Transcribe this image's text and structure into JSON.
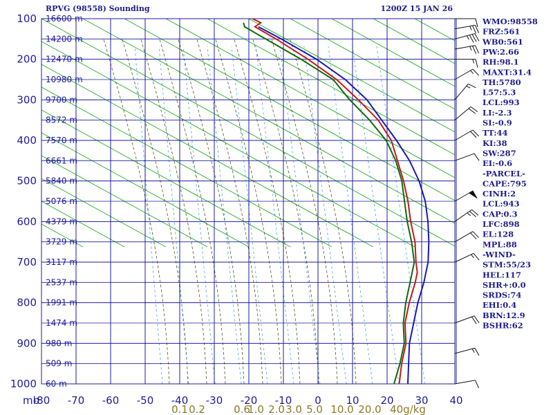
{
  "station_title": "RPVG (98558) Sounding",
  "time_title": "1200Z 15 JAN 26",
  "chart_data": {
    "type": "line",
    "diagram": "skew-t",
    "y_pressure_levels": [
      100,
      200,
      300,
      400,
      500,
      600,
      700,
      800,
      900,
      1000
    ],
    "y_tick_labels": [
      "100",
      "200",
      "300",
      "400",
      "500",
      "600",
      "700",
      "800",
      "900",
      "1000"
    ],
    "y_unit_label": "mb",
    "x_temperature_ticks": [
      -80,
      -70,
      -60,
      -50,
      -40,
      -30,
      -20,
      -10,
      0,
      10,
      20,
      30,
      40
    ],
    "x_tick_labels": [
      "-80",
      "-70",
      "-60",
      "-50",
      "-40",
      "-30",
      "-20",
      "-10",
      "0",
      "10",
      "20",
      "30",
      "40"
    ],
    "height_labels": [
      {
        "p": 100,
        "text": "16600 m"
      },
      {
        "p": 150,
        "text": "14200 m"
      },
      {
        "p": 200,
        "text": "12470 m"
      },
      {
        "p": 250,
        "text": "10980 m"
      },
      {
        "p": 300,
        "text": "9700 m"
      },
      {
        "p": 350,
        "text": "8572 m"
      },
      {
        "p": 400,
        "text": "7570 m"
      },
      {
        "p": 450,
        "text": "6661 m"
      },
      {
        "p": 500,
        "text": "5840 m"
      },
      {
        "p": 550,
        "text": "5076 m"
      },
      {
        "p": 600,
        "text": "4379 m"
      },
      {
        "p": 650,
        "text": "3729 m"
      },
      {
        "p": 700,
        "text": "3117 m"
      },
      {
        "p": 750,
        "text": "2537 m"
      },
      {
        "p": 800,
        "text": "1991 m"
      },
      {
        "p": 850,
        "text": "1474 m"
      },
      {
        "p": 900,
        "text": "980 m"
      },
      {
        "p": 950,
        "text": "509 m"
      },
      {
        "p": 1000,
        "text": "60 m"
      }
    ],
    "mixing_ratio_labels": [
      {
        "t": -40,
        "text": "0.1"
      },
      {
        "t": -35,
        "text": "0.2"
      },
      {
        "t": -22,
        "text": "0.6"
      },
      {
        "t": -18,
        "text": "1.0"
      },
      {
        "t": -12,
        "text": "2.0"
      },
      {
        "t": -7,
        "text": "3.0"
      },
      {
        "t": -1,
        "text": "5.0"
      },
      {
        "t": 7,
        "text": "10.0"
      },
      {
        "t": 15,
        "text": "20.0"
      },
      {
        "t": 26,
        "text": "40g/kg"
      }
    ],
    "series": [
      {
        "key": "temperature",
        "color": "#c01818",
        "points": [
          [
            1000,
            23.5
          ],
          [
            950,
            21
          ],
          [
            900,
            19
          ],
          [
            850,
            15.5
          ],
          [
            800,
            13.5
          ],
          [
            750,
            12
          ],
          [
            725,
            11
          ],
          [
            700,
            9
          ],
          [
            650,
            5.5
          ],
          [
            600,
            1
          ],
          [
            550,
            -3
          ],
          [
            500,
            -7.5
          ],
          [
            450,
            -12.5
          ],
          [
            400,
            -17.5
          ],
          [
            350,
            -24.5
          ],
          [
            300,
            -33.5
          ],
          [
            250,
            -43
          ],
          [
            200,
            -54.5
          ],
          [
            150,
            -67
          ],
          [
            120,
            -75
          ],
          [
            110,
            -74
          ],
          [
            100,
            -77
          ]
        ]
      },
      {
        "key": "dewpoint",
        "color": "#0c6a0c",
        "points": [
          [
            1000,
            22
          ],
          [
            950,
            20.5
          ],
          [
            900,
            18.5
          ],
          [
            850,
            15
          ],
          [
            800,
            12.5
          ],
          [
            750,
            10.5
          ],
          [
            700,
            8.5
          ],
          [
            650,
            4.5
          ],
          [
            600,
            0
          ],
          [
            550,
            -4
          ],
          [
            500,
            -8
          ],
          [
            450,
            -13
          ],
          [
            400,
            -19
          ],
          [
            350,
            -27
          ],
          [
            300,
            -36
          ],
          [
            250,
            -44
          ],
          [
            200,
            -56.5
          ],
          [
            150,
            -70
          ],
          [
            120,
            -78
          ],
          [
            110,
            -79
          ]
        ]
      },
      {
        "key": "parcel",
        "color": "#1818b4",
        "points": [
          [
            1000,
            26
          ],
          [
            950,
            23
          ],
          [
            900,
            20
          ],
          [
            850,
            18
          ],
          [
            800,
            16
          ],
          [
            750,
            14.5
          ],
          [
            700,
            12.5
          ],
          [
            650,
            9.5
          ],
          [
            600,
            6
          ],
          [
            550,
            2
          ],
          [
            500,
            -3
          ],
          [
            450,
            -9
          ],
          [
            400,
            -16
          ],
          [
            350,
            -23.5
          ],
          [
            300,
            -31
          ],
          [
            250,
            -40.5
          ],
          [
            200,
            -52
          ],
          [
            150,
            -65.5
          ],
          [
            120,
            -74
          ]
        ]
      }
    ],
    "wind_barbs": [
      {
        "p": 100,
        "dir": 90,
        "kt": 10
      },
      {
        "p": 125,
        "dir": 80,
        "kt": 25
      },
      {
        "p": 150,
        "dir": 75,
        "kt": 35
      },
      {
        "p": 175,
        "dir": 80,
        "kt": 25
      },
      {
        "p": 200,
        "dir": 90,
        "kt": 15
      },
      {
        "p": 250,
        "dir": 60,
        "kt": 15
      },
      {
        "p": 300,
        "dir": 40,
        "kt": 15
      },
      {
        "p": 350,
        "dir": 50,
        "kt": 20
      },
      {
        "p": 400,
        "dir": 60,
        "kt": 20
      },
      {
        "p": 450,
        "dir": 70,
        "kt": 10
      },
      {
        "p": 550,
        "dir": 60,
        "kt": 50
      },
      {
        "p": 600,
        "dir": 55,
        "kt": 25
      },
      {
        "p": 650,
        "dir": 60,
        "kt": 20
      },
      {
        "p": 700,
        "dir": 65,
        "kt": 15
      },
      {
        "p": 850,
        "dir": 70,
        "kt": 20
      },
      {
        "p": 925,
        "dir": 75,
        "kt": 15
      },
      {
        "p": 1000,
        "dir": 80,
        "kt": 10
      }
    ]
  },
  "indices": [
    "WMO:98558",
    "FRZ:561",
    "WB0:561",
    "PW:2.66",
    "RH:98.1",
    "MAXT:31.4",
    "TH:5780",
    "L57:5.3",
    "LCL:993",
    "LI:-2.3",
    "SI:-0.9",
    "TT:44",
    "KI:38",
    "SW:287",
    "EI:-0.6",
    "-PARCEL-",
    "CAPE:795",
    "CINH:2",
    "LCL:943",
    "CAP:0.3",
    "LFC:898",
    "EL:128",
    "MPL:88",
    "-WIND-",
    "STM:55/23",
    "HEL:117",
    "SHR+:0.0",
    "SRDS:74",
    "EHI:0.4",
    "BRN:12.9",
    "BSHR:62"
  ],
  "colors": {
    "grid": "#1c1c9c",
    "dry_adiabat": "#2a8a2a",
    "isotherm_diag": "#22b022",
    "moist_adiabat": "#555522",
    "mixing_ratio": "#3aa0d8",
    "barb": "#111111"
  }
}
